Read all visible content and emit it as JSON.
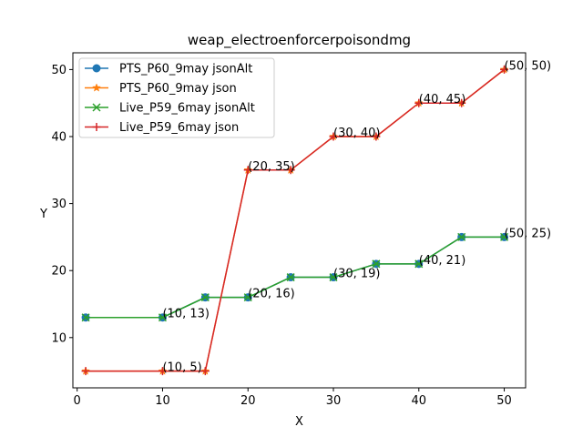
{
  "chart_data": {
    "type": "line",
    "title": "weap_electroenforcerpoisondmg",
    "xlabel": "X",
    "ylabel": "Y",
    "xlim": [
      -0.5,
      52.5
    ],
    "ylim": [
      2.5,
      52.5
    ],
    "xticks": [
      0,
      10,
      20,
      30,
      40,
      50
    ],
    "yticks": [
      10,
      20,
      30,
      40,
      50
    ],
    "grid": false,
    "legend_position": "upper-left",
    "series": [
      {
        "name": "PTS_P60_9may jsonAlt",
        "color": "#1f77b4",
        "marker": "circle",
        "x": [
          1,
          10,
          15,
          20,
          25,
          30,
          35,
          40,
          45,
          50
        ],
        "y": [
          13,
          13,
          16,
          16,
          19,
          19,
          21,
          21,
          25,
          25
        ]
      },
      {
        "name": "PTS_P60_9may json",
        "color": "#ff7f0e",
        "marker": "star",
        "x": [
          1,
          10,
          15,
          20,
          25,
          30,
          35,
          40,
          45,
          50
        ],
        "y": [
          5,
          5,
          5,
          35,
          35,
          40,
          40,
          45,
          45,
          50
        ]
      },
      {
        "name": "Live_P59_6may jsonAlt",
        "color": "#2ca02c",
        "marker": "x",
        "x": [
          1,
          10,
          15,
          20,
          25,
          30,
          35,
          40,
          45,
          50
        ],
        "y": [
          13,
          13,
          16,
          16,
          19,
          19,
          21,
          21,
          25,
          25
        ]
      },
      {
        "name": "Live_P59_6may json",
        "color": "#d62728",
        "marker": "plus",
        "x": [
          1,
          10,
          15,
          20,
          25,
          30,
          35,
          40,
          45,
          50
        ],
        "y": [
          5,
          5,
          5,
          35,
          35,
          40,
          40,
          45,
          45,
          50
        ]
      }
    ],
    "annotations": [
      {
        "text": "(10, 13)",
        "x": 10,
        "y": 13
      },
      {
        "text": "(20, 16)",
        "x": 20,
        "y": 16
      },
      {
        "text": "(30, 19)",
        "x": 30,
        "y": 19
      },
      {
        "text": "(40, 21)",
        "x": 40,
        "y": 21
      },
      {
        "text": "(50, 25)",
        "x": 50,
        "y": 25
      },
      {
        "text": "(10, 5)",
        "x": 10,
        "y": 5
      },
      {
        "text": "(20, 35)",
        "x": 20,
        "y": 35
      },
      {
        "text": "(30, 40)",
        "x": 30,
        "y": 40
      },
      {
        "text": "(40, 45)",
        "x": 40,
        "y": 45
      },
      {
        "text": "(50, 50)",
        "x": 50,
        "y": 50
      }
    ]
  }
}
